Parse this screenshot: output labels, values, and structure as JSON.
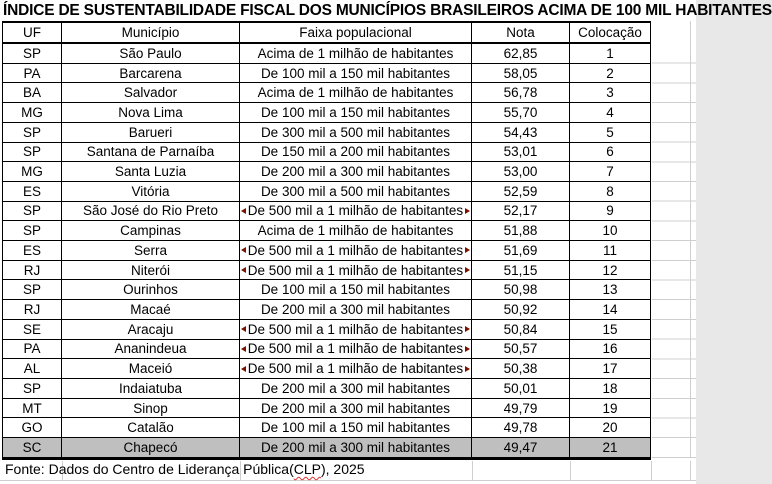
{
  "title": "ÍNDICE DE SUSTENTABILIDADE FISCAL DOS MUNICÍPIOS BRASILEIROS ACIMA DE 100 MIL HABITANTES",
  "table": {
    "columns": [
      "UF",
      "Município",
      "Faixa populacional",
      "Nota",
      "Colocação"
    ],
    "rows": [
      {
        "uf": "SP",
        "municipio": "São Paulo",
        "faixa": "Acima de 1 milhão de habitantes",
        "nota": "62,85",
        "colocacao": "1",
        "clipped": false,
        "highlight": false
      },
      {
        "uf": "PA",
        "municipio": "Barcarena",
        "faixa": "De 100 mil a 150 mil habitantes",
        "nota": "58,05",
        "colocacao": "2",
        "clipped": false,
        "highlight": false
      },
      {
        "uf": "BA",
        "municipio": "Salvador",
        "faixa": "Acima de 1 milhão de habitantes",
        "nota": "56,78",
        "colocacao": "3",
        "clipped": false,
        "highlight": false
      },
      {
        "uf": "MG",
        "municipio": "Nova Lima",
        "faixa": "De 100 mil a 150 mil habitantes",
        "nota": "55,70",
        "colocacao": "4",
        "clipped": false,
        "highlight": false
      },
      {
        "uf": "SP",
        "municipio": "Barueri",
        "faixa": "De 300 mil a 500 mil habitantes",
        "nota": "54,43",
        "colocacao": "5",
        "clipped": false,
        "highlight": false
      },
      {
        "uf": "SP",
        "municipio": "Santana de Parnaíba",
        "faixa": "De 150 mil a 200 mil habitantes",
        "nota": "53,01",
        "colocacao": "6",
        "clipped": false,
        "highlight": false
      },
      {
        "uf": "MG",
        "municipio": "Santa Luzia",
        "faixa": "De 200 mil a 300 mil habitantes",
        "nota": "53,00",
        "colocacao": "7",
        "clipped": false,
        "highlight": false
      },
      {
        "uf": "ES",
        "municipio": "Vitória",
        "faixa": "De 300 mil a 500 mil habitantes",
        "nota": "52,59",
        "colocacao": "8",
        "clipped": false,
        "highlight": false
      },
      {
        "uf": "SP",
        "municipio": "São José do Rio Preto",
        "faixa": "De 500 mil a 1 milhão de habitantes",
        "nota": "52,17",
        "colocacao": "9",
        "clipped": true,
        "highlight": false
      },
      {
        "uf": "SP",
        "municipio": "Campinas",
        "faixa": "Acima de 1 milhão de habitantes",
        "nota": "51,88",
        "colocacao": "10",
        "clipped": false,
        "highlight": false
      },
      {
        "uf": "ES",
        "municipio": "Serra",
        "faixa": "De 500 mil a 1 milhão de habitantes",
        "nota": "51,69",
        "colocacao": "11",
        "clipped": true,
        "highlight": false
      },
      {
        "uf": "RJ",
        "municipio": "Niterói",
        "faixa": "De 500 mil a 1 milhão de habitantes",
        "nota": "51,15",
        "colocacao": "12",
        "clipped": true,
        "highlight": false
      },
      {
        "uf": "SP",
        "municipio": "Ourinhos",
        "faixa": "De 100 mil a 150 mil habitantes",
        "nota": "50,98",
        "colocacao": "13",
        "clipped": false,
        "highlight": false
      },
      {
        "uf": "RJ",
        "municipio": "Macaé",
        "faixa": "De 200 mil a 300 mil habitantes",
        "nota": "50,92",
        "colocacao": "14",
        "clipped": false,
        "highlight": false
      },
      {
        "uf": "SE",
        "municipio": "Aracaju",
        "faixa": "De 500 mil a 1 milhão de habitantes",
        "nota": "50,84",
        "colocacao": "15",
        "clipped": true,
        "highlight": false
      },
      {
        "uf": "PA",
        "municipio": "Ananindeua",
        "faixa": "De 500 mil a 1 milhão de habitantes",
        "nota": "50,57",
        "colocacao": "16",
        "clipped": true,
        "highlight": false
      },
      {
        "uf": "AL",
        "municipio": "Maceió",
        "faixa": "De 500 mil a 1 milhão de habitantes",
        "nota": "50,38",
        "colocacao": "17",
        "clipped": true,
        "highlight": false
      },
      {
        "uf": "SP",
        "municipio": "Indaiatuba",
        "faixa": "De 200 mil a 300 mil habitantes",
        "nota": "50,01",
        "colocacao": "18",
        "clipped": false,
        "highlight": false
      },
      {
        "uf": "MT",
        "municipio": "Sinop",
        "faixa": "De 200 mil a 300 mil habitantes",
        "nota": "49,79",
        "colocacao": "19",
        "clipped": false,
        "highlight": false
      },
      {
        "uf": "GO",
        "municipio": "Catalão",
        "faixa": "De 100 mil a 150 mil habitantes",
        "nota": "49,78",
        "colocacao": "20",
        "clipped": false,
        "highlight": false
      },
      {
        "uf": "SC",
        "municipio": "Chapecó",
        "faixa": "De 200 mil a 300 mil habitantes",
        "nota": "49,47",
        "colocacao": "21",
        "clipped": false,
        "highlight": true
      }
    ]
  },
  "footer": {
    "prefix": "Fonte: Dados do Centro de Liderança Pública(",
    "misspelled_word": "CLP",
    "suffix": "), 2025"
  },
  "colors": {
    "highlight_row": "#bfbfbf",
    "clip_arrow": "#7c0f00",
    "gridline": "#cfcfcf",
    "table_border": "#000000",
    "spellcheck_underline": "#e03030"
  }
}
